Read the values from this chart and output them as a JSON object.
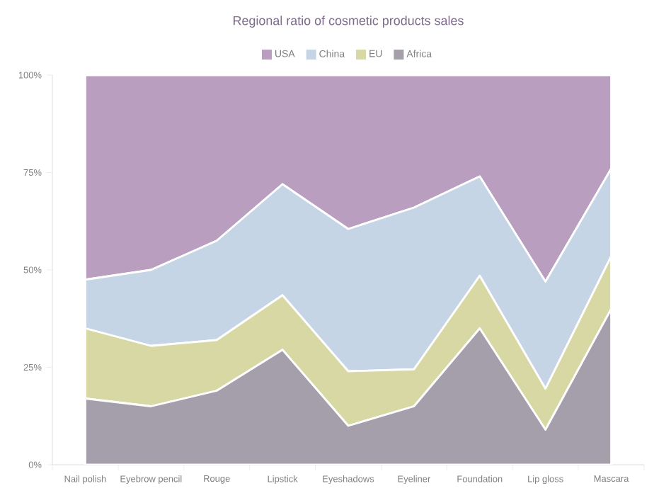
{
  "chart_data": {
    "type": "area",
    "stacked": true,
    "title": "Regional ratio of cosmetic products sales",
    "categories": [
      "Nail polish",
      "Eyebrow pencil",
      "Rouge",
      "Lipstick",
      "Eyeshadows",
      "Eyeliner",
      "Foundation",
      "Lip gloss",
      "Mascara"
    ],
    "series": [
      {
        "name": "Africa",
        "color": "#a59eab",
        "values": [
          17,
          15,
          19,
          29.5,
          10,
          15,
          35,
          9,
          40
        ]
      },
      {
        "name": "EU",
        "color": "#d7d8a4",
        "values": [
          18,
          15.5,
          13,
          14,
          14,
          9.5,
          13.5,
          10.5,
          13.5
        ]
      },
      {
        "name": "China",
        "color": "#c5d5e6",
        "values": [
          12.5,
          19.5,
          25.5,
          28.5,
          36.5,
          41.5,
          25.5,
          27.5,
          22.5
        ]
      },
      {
        "name": "USA",
        "color": "#b99ec0",
        "values": [
          52.5,
          50,
          42.5,
          28,
          39.5,
          34,
          26,
          53,
          24
        ]
      }
    ],
    "ylim": [
      0,
      100
    ],
    "yticks": [
      {
        "value": 0,
        "label": "0%"
      },
      {
        "value": 25,
        "label": "25%"
      },
      {
        "value": 50,
        "label": "50%"
      },
      {
        "value": 75,
        "label": "75%"
      },
      {
        "value": 100,
        "label": "100%"
      }
    ],
    "legend": "top"
  }
}
